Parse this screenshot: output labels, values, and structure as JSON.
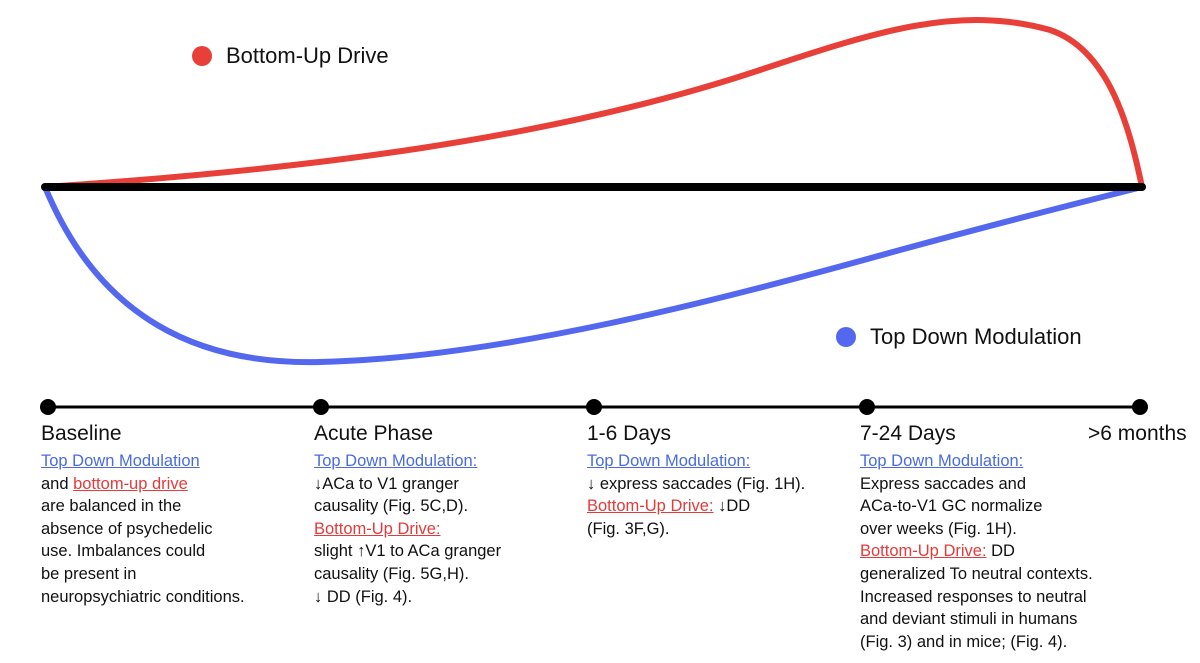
{
  "colors": {
    "bottom_up": "#e84038",
    "top_down": "#5468ef",
    "baseline": "#000000",
    "timeline": "#000000"
  },
  "legend": {
    "bottom_up": "Bottom-Up Drive",
    "top_down": "Top Down Modulation"
  },
  "phases": [
    {
      "title": "Baseline",
      "lines": [
        [
          {
            "t": "Top Down Modulation",
            "s": "blue"
          }
        ],
        [
          {
            "t": "and ",
            "s": ""
          },
          {
            "t": "bottom-up drive",
            "s": "red"
          }
        ],
        [
          {
            "t": "are balanced in the",
            "s": ""
          }
        ],
        [
          {
            "t": "absence of psychedelic",
            "s": ""
          }
        ],
        [
          {
            "t": "use. Imbalances could",
            "s": ""
          }
        ],
        [
          {
            "t": "be present in",
            "s": ""
          }
        ],
        [
          {
            "t": "neuropsychiatric conditions.",
            "s": ""
          }
        ]
      ]
    },
    {
      "title": "Acute Phase",
      "lines": [
        [
          {
            "t": "Top Down Modulation:",
            "s": "blue"
          }
        ],
        [
          {
            "t": "↓ACa to V1 granger",
            "s": ""
          }
        ],
        [
          {
            "t": "causality (Fig. 5C,D).",
            "s": ""
          }
        ],
        [
          {
            "t": "Bottom-Up Drive:",
            "s": "red"
          }
        ],
        [
          {
            "t": "slight ↑V1 to ACa granger",
            "s": ""
          }
        ],
        [
          {
            "t": "causality (Fig. 5G,H).",
            "s": ""
          }
        ],
        [
          {
            "t": "↓ DD (Fig. 4).",
            "s": ""
          }
        ]
      ]
    },
    {
      "title": "1-6 Days",
      "lines": [
        [
          {
            "t": "Top Down Modulation:",
            "s": "blue"
          }
        ],
        [
          {
            "t": "↓ express saccades (Fig. 1H).",
            "s": ""
          }
        ],
        [
          {
            "t": "Bottom-Up Drive:",
            "s": "red"
          },
          {
            "t": " ↓DD",
            "s": ""
          }
        ],
        [
          {
            "t": "(Fig. 3F,G).",
            "s": ""
          }
        ]
      ]
    },
    {
      "title": "7-24 Days",
      "lines": [
        [
          {
            "t": "Top Down Modulation:",
            "s": "blue"
          }
        ],
        [
          {
            "t": "Express saccades and",
            "s": ""
          }
        ],
        [
          {
            "t": "ACa-to-V1 GC normalize",
            "s": ""
          }
        ],
        [
          {
            "t": "over weeks (Fig. 1H).",
            "s": ""
          }
        ],
        [
          {
            "t": "Bottom-Up Drive:",
            "s": "red"
          },
          {
            "t": " DD",
            "s": ""
          }
        ],
        [
          {
            "t": "generalized To neutral contexts.",
            "s": ""
          }
        ],
        [
          {
            "t": "Increased responses to neutral",
            "s": ""
          }
        ],
        [
          {
            "t": "and deviant stimuli in humans",
            "s": ""
          }
        ],
        [
          {
            "t": "(Fig. 3) and in mice; (Fig. 4).",
            "s": ""
          }
        ]
      ]
    },
    {
      "title": ">6 months",
      "lines": []
    }
  ]
}
